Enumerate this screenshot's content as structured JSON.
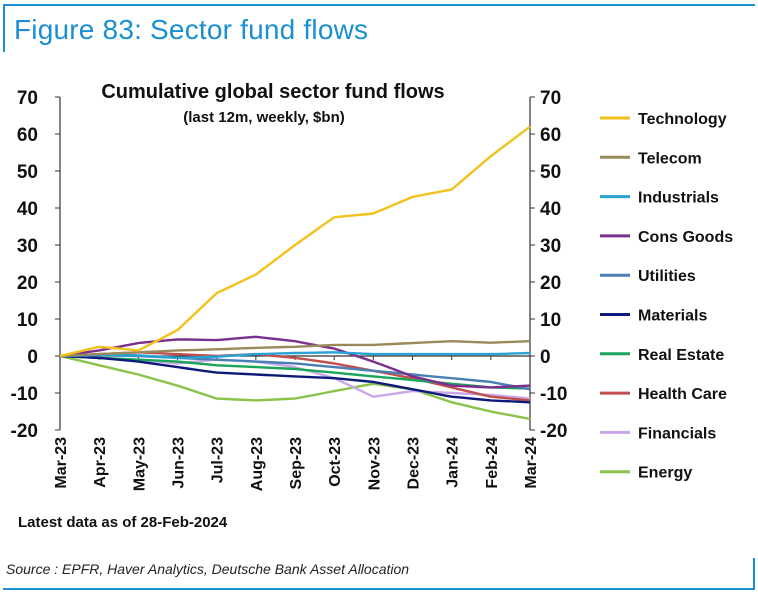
{
  "figure_title": "Figure 83: Sector fund flows",
  "latest_note": "Latest data as of 28-Feb-2024",
  "source": "Source : EPFR, Haver Analytics, Deutsche Bank Asset Allocation",
  "chart_data": {
    "type": "line",
    "title": "Cumulative global sector fund flows",
    "subtitle": "(last 12m, weekly, $bn)",
    "xlabel": "",
    "ylabel": "",
    "ylim": [
      -20,
      70
    ],
    "yticks": [
      70,
      60,
      50,
      40,
      30,
      20,
      10,
      0,
      -10,
      -20
    ],
    "yticks_right": [
      "70",
      "60",
      "50",
      "40",
      "30",
      "20",
      "10",
      "0",
      "-10",
      "-20"
    ],
    "categories": [
      "Mar-23",
      "Apr-23",
      "May-23",
      "Jun-23",
      "Jul-23",
      "Aug-23",
      "Sep-23",
      "Oct-23",
      "Nov-23",
      "Dec-23",
      "Jan-24",
      "Feb-24",
      "Mar-24"
    ],
    "legend_position": "right",
    "series": [
      {
        "name": "Technology",
        "color": "#f2c21b",
        "values": [
          0,
          2.5,
          1.5,
          7,
          17,
          22,
          30,
          37.5,
          38.5,
          43,
          45,
          54,
          62
        ]
      },
      {
        "name": "Telecom",
        "color": "#998a5c",
        "values": [
          0,
          0.5,
          1.0,
          1.5,
          1.8,
          2.2,
          2.5,
          3.0,
          3.0,
          3.5,
          4.0,
          3.6,
          4.0
        ]
      },
      {
        "name": "Industrials",
        "color": "#29a3d6",
        "values": [
          0,
          0.3,
          0.2,
          -0.5,
          -0.2,
          0.5,
          0.8,
          1.0,
          0.5,
          0.5,
          0.5,
          0.5,
          0.8
        ]
      },
      {
        "name": "Cons Goods",
        "color": "#7b2f8e",
        "values": [
          0,
          1.5,
          3.5,
          4.5,
          4.3,
          5.2,
          4.0,
          2.0,
          -1.5,
          -5.5,
          -8.0,
          -8.5,
          -8.0
        ]
      },
      {
        "name": "Utilities",
        "color": "#4a7fb5",
        "values": [
          0,
          0.2,
          0.0,
          -0.5,
          -1.0,
          -1.5,
          -2.0,
          -3.0,
          -4.0,
          -5.0,
          -6.0,
          -7.0,
          -9.0
        ]
      },
      {
        "name": "Materials",
        "color": "#0d1a7a",
        "values": [
          0,
          -0.5,
          -1.5,
          -3.0,
          -4.5,
          -5.0,
          -5.5,
          -6.0,
          -7.0,
          -9.0,
          -11.0,
          -12.0,
          -12.5
        ]
      },
      {
        "name": "Real Estate",
        "color": "#19a65a",
        "values": [
          0,
          -0.5,
          -1.0,
          -1.5,
          -2.5,
          -3.0,
          -3.5,
          -4.5,
          -5.5,
          -6.5,
          -7.5,
          -8.5,
          -8.8
        ]
      },
      {
        "name": "Health Care",
        "color": "#c0504d",
        "values": [
          0,
          0.5,
          1.0,
          0.5,
          0.0,
          0.5,
          -0.5,
          -2.0,
          -4.0,
          -6.0,
          -8.5,
          -11.0,
          -12.0
        ]
      },
      {
        "name": "Financials",
        "color": "#c9a8e8",
        "values": [
          0,
          -0.5,
          -1.0,
          -2.0,
          -1.0,
          -1.5,
          -3.0,
          -6.0,
          -11.0,
          -9.5,
          -10.0,
          -10.5,
          -11.5
        ]
      },
      {
        "name": "Energy",
        "color": "#8bc34a",
        "values": [
          0,
          -2.5,
          -5.0,
          -8.0,
          -11.5,
          -12.0,
          -11.5,
          -9.5,
          -7.5,
          -9.0,
          -12.5,
          -15.0,
          -17.0
        ]
      }
    ]
  }
}
